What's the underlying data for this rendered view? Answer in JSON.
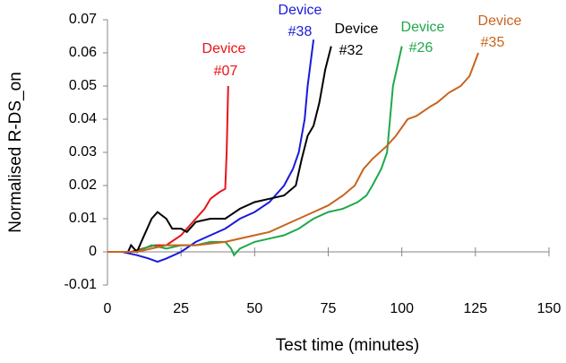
{
  "chart_data": {
    "type": "line",
    "xlabel": "Test time (minutes)",
    "ylabel": "Normalised R-DS_on",
    "xlim": [
      0,
      150
    ],
    "xticks": [
      0,
      25,
      50,
      75,
      100,
      125,
      150
    ],
    "ylim": [
      -0.01,
      0.07
    ],
    "yticks": [
      -0.01,
      0,
      0.01,
      0.02,
      0.03,
      0.04,
      0.05,
      0.06,
      0.07
    ],
    "series": [
      {
        "name": "#07",
        "color": "#e8141b",
        "x": [
          0,
          8,
          12,
          16,
          20,
          25,
          28,
          30,
          33,
          35,
          38,
          40,
          40.5,
          41
        ],
        "values": [
          0,
          0,
          0.001,
          0.002,
          0.002,
          0.005,
          0.008,
          0.01,
          0.013,
          0.016,
          0.018,
          0.019,
          0.03,
          0.05
        ]
      },
      {
        "name": "#38",
        "color": "#1a1adb",
        "x": [
          0,
          5,
          10,
          14,
          17,
          20,
          25,
          30,
          35,
          40,
          45,
          50,
          55,
          60,
          63,
          65,
          67,
          68,
          70
        ],
        "values": [
          0,
          0,
          -0.001,
          -0.002,
          -0.003,
          -0.002,
          0,
          0.003,
          0.005,
          0.007,
          0.01,
          0.012,
          0.015,
          0.02,
          0.025,
          0.03,
          0.04,
          0.05,
          0.064
        ]
      },
      {
        "name": "#32",
        "color": "#000000",
        "x": [
          0,
          7,
          8,
          10,
          12,
          15,
          17,
          20,
          22,
          25,
          27,
          30,
          35,
          40,
          45,
          50,
          55,
          60,
          64,
          66,
          68,
          70,
          72,
          74,
          76
        ],
        "values": [
          0,
          0,
          0.002,
          0,
          0.004,
          0.01,
          0.012,
          0.01,
          0.007,
          0.007,
          0.006,
          0.009,
          0.01,
          0.01,
          0.013,
          0.015,
          0.016,
          0.017,
          0.02,
          0.028,
          0.035,
          0.038,
          0.045,
          0.055,
          0.062
        ]
      },
      {
        "name": "#26",
        "color": "#1fa84a",
        "x": [
          0,
          10,
          15,
          20,
          25,
          30,
          35,
          40,
          42,
          43,
          45,
          50,
          55,
          60,
          65,
          70,
          75,
          80,
          85,
          88,
          90,
          93,
          95,
          96,
          97,
          100
        ],
        "values": [
          0,
          0,
          0.002,
          0.001,
          0.002,
          0.002,
          0.003,
          0.003,
          0.001,
          -0.001,
          0.001,
          0.003,
          0.004,
          0.005,
          0.007,
          0.01,
          0.012,
          0.013,
          0.015,
          0.017,
          0.02,
          0.025,
          0.03,
          0.04,
          0.05,
          0.062
        ]
      },
      {
        "name": "#35",
        "color": "#c8641e",
        "x": [
          0,
          10,
          15,
          20,
          30,
          40,
          50,
          55,
          60,
          65,
          70,
          75,
          80,
          84,
          87,
          90,
          95,
          98,
          102,
          105,
          110,
          112,
          116,
          120,
          123,
          126
        ],
        "values": [
          0,
          0,
          0.001,
          0.002,
          0.002,
          0.003,
          0.005,
          0.006,
          0.008,
          0.01,
          0.012,
          0.014,
          0.017,
          0.02,
          0.025,
          0.028,
          0.032,
          0.035,
          0.04,
          0.041,
          0.044,
          0.045,
          0.048,
          0.05,
          0.053,
          0.06
        ]
      }
    ],
    "annotations": [
      {
        "text": "Device",
        "series": "#07"
      },
      {
        "text": "#07"
      },
      {
        "text": "Device",
        "series": "#38"
      },
      {
        "text": "#38"
      },
      {
        "text": "Device",
        "series": "#32"
      },
      {
        "text": "#32"
      },
      {
        "text": "Device",
        "series": "#26"
      },
      {
        "text": "#26"
      },
      {
        "text": "Device",
        "series": "#35"
      },
      {
        "text": "#35"
      }
    ]
  }
}
